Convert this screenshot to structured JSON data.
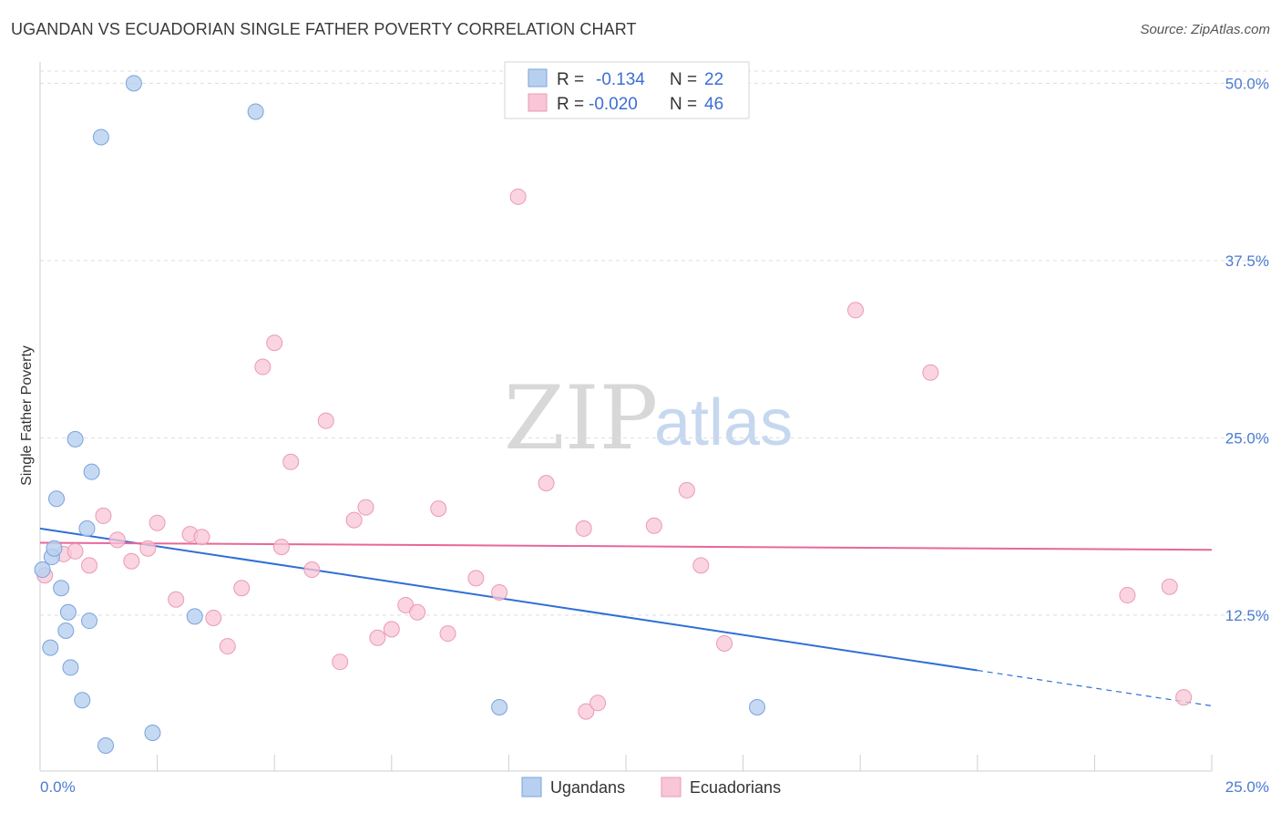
{
  "header": {
    "title": "UGANDAN VS ECUADORIAN SINGLE FATHER POVERTY CORRELATION CHART",
    "source": "Source: ZipAtlas.com"
  },
  "watermark": {
    "zip": "ZIP",
    "atlas": "atlas"
  },
  "colors": {
    "ugandan_fill": "#b8d0f0",
    "ugandan_stroke": "#7aa3dc",
    "ugandan_line": "#2f6fd6",
    "ecuadorian_fill": "#f8c6d6",
    "ecuadorian_stroke": "#eb9ab5",
    "ecuadorian_line": "#e8679a",
    "tick_label": "#4a7bd0"
  },
  "legend": {
    "rows": [
      {
        "r_label": "R =",
        "r_value": "-0.134",
        "n_label": "N =",
        "n_value": "22"
      },
      {
        "r_label": "R =",
        "r_value": "-0.020",
        "n_label": "N =",
        "n_value": "46"
      }
    ]
  },
  "bottom_legend": {
    "ugandans": "Ugandans",
    "ecuadorians": "Ecuadorians"
  },
  "chart_data": {
    "type": "scatter",
    "title": "UGANDAN VS ECUADORIAN SINGLE FATHER POVERTY CORRELATION CHART",
    "xlabel": "",
    "ylabel": "Single Father Poverty",
    "xlim": [
      0,
      25
    ],
    "ylim": [
      1.5,
      51.5
    ],
    "x_tick_labels": [
      "0.0%",
      "25.0%"
    ],
    "y_ticks": [
      {
        "value": 12.5,
        "label": "12.5%"
      },
      {
        "value": 25.0,
        "label": "25.0%"
      },
      {
        "value": 37.5,
        "label": "37.5%"
      },
      {
        "value": 50.0,
        "label": "50.0%"
      }
    ],
    "series": [
      {
        "name": "Ugandans",
        "r": -0.134,
        "n": 22,
        "points": [
          [
            0.05,
            15.7
          ],
          [
            0.25,
            16.6
          ],
          [
            0.3,
            17.2
          ],
          [
            0.35,
            20.7
          ],
          [
            0.45,
            14.4
          ],
          [
            0.55,
            11.4
          ],
          [
            0.6,
            12.7
          ],
          [
            0.22,
            10.2
          ],
          [
            0.65,
            8.8
          ],
          [
            0.75,
            24.9
          ],
          [
            0.9,
            6.5
          ],
          [
            1.0,
            18.6
          ],
          [
            1.05,
            12.1
          ],
          [
            1.1,
            22.6
          ],
          [
            1.3,
            46.2
          ],
          [
            1.4,
            3.3
          ],
          [
            2.0,
            50.0
          ],
          [
            2.4,
            4.2
          ],
          [
            3.3,
            12.4
          ],
          [
            4.6,
            48.0
          ],
          [
            9.8,
            6.0
          ],
          [
            15.3,
            6.0
          ]
        ],
        "trend": {
          "x": [
            0,
            20
          ],
          "y": [
            18.6,
            8.6
          ],
          "dashed_x": [
            20,
            25
          ],
          "dashed_y": [
            8.6,
            6.1
          ]
        }
      },
      {
        "name": "Ecuadorians",
        "r": -0.02,
        "n": 46,
        "points": [
          [
            0.1,
            15.3
          ],
          [
            0.5,
            16.8
          ],
          [
            0.75,
            17.0
          ],
          [
            1.05,
            16.0
          ],
          [
            1.35,
            19.5
          ],
          [
            1.65,
            17.8
          ],
          [
            1.95,
            16.3
          ],
          [
            2.3,
            17.2
          ],
          [
            2.5,
            19.0
          ],
          [
            2.9,
            13.6
          ],
          [
            3.2,
            18.2
          ],
          [
            3.45,
            18.0
          ],
          [
            3.7,
            12.3
          ],
          [
            4.0,
            10.3
          ],
          [
            4.3,
            14.4
          ],
          [
            4.75,
            30.0
          ],
          [
            5.0,
            31.7
          ],
          [
            5.15,
            17.3
          ],
          [
            5.35,
            23.3
          ],
          [
            5.8,
            15.7
          ],
          [
            6.1,
            26.2
          ],
          [
            6.4,
            9.2
          ],
          [
            6.7,
            19.2
          ],
          [
            6.95,
            20.1
          ],
          [
            7.2,
            10.9
          ],
          [
            7.5,
            11.5
          ],
          [
            7.8,
            13.2
          ],
          [
            8.05,
            12.7
          ],
          [
            8.5,
            20.0
          ],
          [
            8.7,
            11.2
          ],
          [
            9.3,
            15.1
          ],
          [
            9.8,
            14.1
          ],
          [
            10.2,
            42.0
          ],
          [
            10.8,
            21.8
          ],
          [
            11.6,
            18.6
          ],
          [
            11.65,
            5.7
          ],
          [
            11.9,
            6.3
          ],
          [
            13.1,
            18.8
          ],
          [
            13.8,
            21.3
          ],
          [
            14.1,
            16.0
          ],
          [
            14.6,
            10.5
          ],
          [
            17.4,
            34.0
          ],
          [
            19.0,
            29.6
          ],
          [
            23.2,
            13.9
          ],
          [
            24.1,
            14.5
          ],
          [
            24.4,
            6.7
          ]
        ],
        "trend": {
          "x": [
            0,
            25
          ],
          "y": [
            17.6,
            17.1
          ]
        }
      }
    ]
  }
}
